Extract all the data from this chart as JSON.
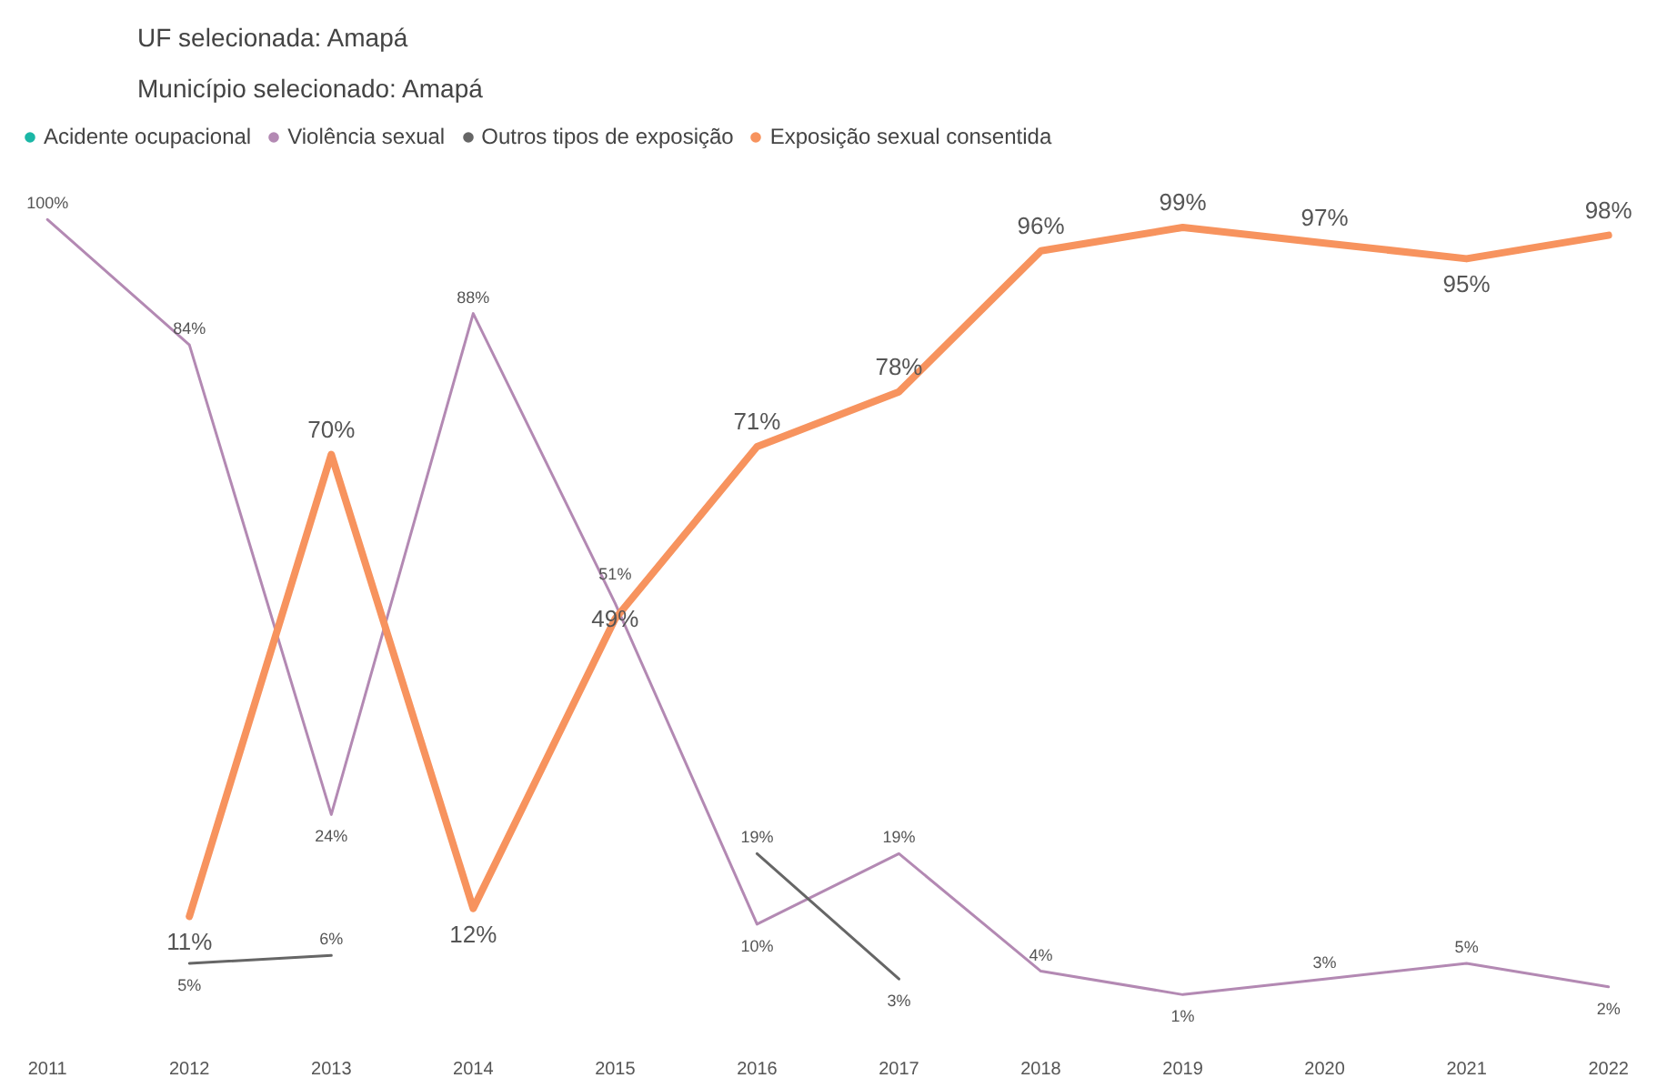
{
  "chart_data": {
    "type": "line",
    "title": "UF selecionada: Amapá",
    "subtitle": "Município selecionado: Amapá",
    "categories": [
      "2011",
      "2012",
      "2013",
      "2014",
      "2015",
      "2016",
      "2017",
      "2018",
      "2019",
      "2020",
      "2021",
      "2022"
    ],
    "tick_labels": "x",
    "grid": false,
    "legend": "top left",
    "series": [
      {
        "name": "Acidente ocupacional",
        "color": "#1bb7a6",
        "values": [
          null,
          null,
          null,
          null,
          null,
          null,
          null,
          null,
          null,
          null,
          null,
          null
        ]
      },
      {
        "name": "Violência sexual",
        "color": "#b389b3",
        "values": [
          100,
          84,
          24,
          88,
          51,
          10,
          19,
          4,
          1,
          3,
          5,
          2
        ],
        "value_labels": [
          "100%",
          "84%",
          "24%",
          "88%",
          "51%",
          "10%",
          "19%",
          "4%",
          "1%",
          "3%",
          "5%",
          "2%"
        ]
      },
      {
        "name": "Outros tipos de exposição",
        "color": "#666666",
        "values": [
          null,
          5,
          6,
          null,
          null,
          19,
          3,
          null,
          null,
          null,
          null,
          null
        ],
        "value_labels": [
          null,
          "5%",
          "6%",
          null,
          null,
          "19%",
          "3%",
          null,
          null,
          null,
          null,
          null
        ]
      },
      {
        "name": "Exposição sexual consentida",
        "color": "#f7935e",
        "values": [
          null,
          11,
          70,
          12,
          49,
          71,
          78,
          96,
          99,
          97,
          95,
          98
        ],
        "value_labels": [
          null,
          "11%",
          "70%",
          "12%",
          "49%",
          "71%",
          "78%",
          "96%",
          "99%",
          "97%",
          "95%",
          "98%"
        ]
      }
    ]
  }
}
